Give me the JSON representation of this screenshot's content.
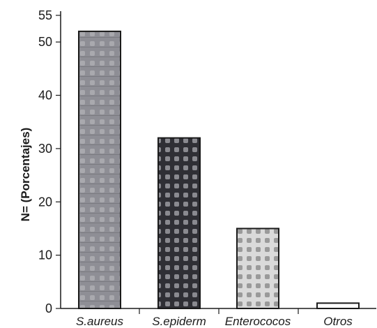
{
  "chart_data": {
    "type": "bar",
    "title": "",
    "xlabel": "",
    "ylabel": "N= (Porcentajes)",
    "categories": [
      "S.aureus",
      "S.epiderm",
      "Enterococos",
      "Otros"
    ],
    "values": [
      52,
      32,
      15,
      1
    ],
    "ylim": [
      0,
      55
    ],
    "yticks": [
      0,
      10,
      20,
      30,
      40,
      50,
      55
    ],
    "grid": false,
    "legend": "none",
    "colors": {
      "S.aureus": "#8e8e95",
      "S.epiderm": "#3a3a40",
      "Enterococos": "#c9c9c9",
      "Otros": "#ffffff"
    }
  }
}
